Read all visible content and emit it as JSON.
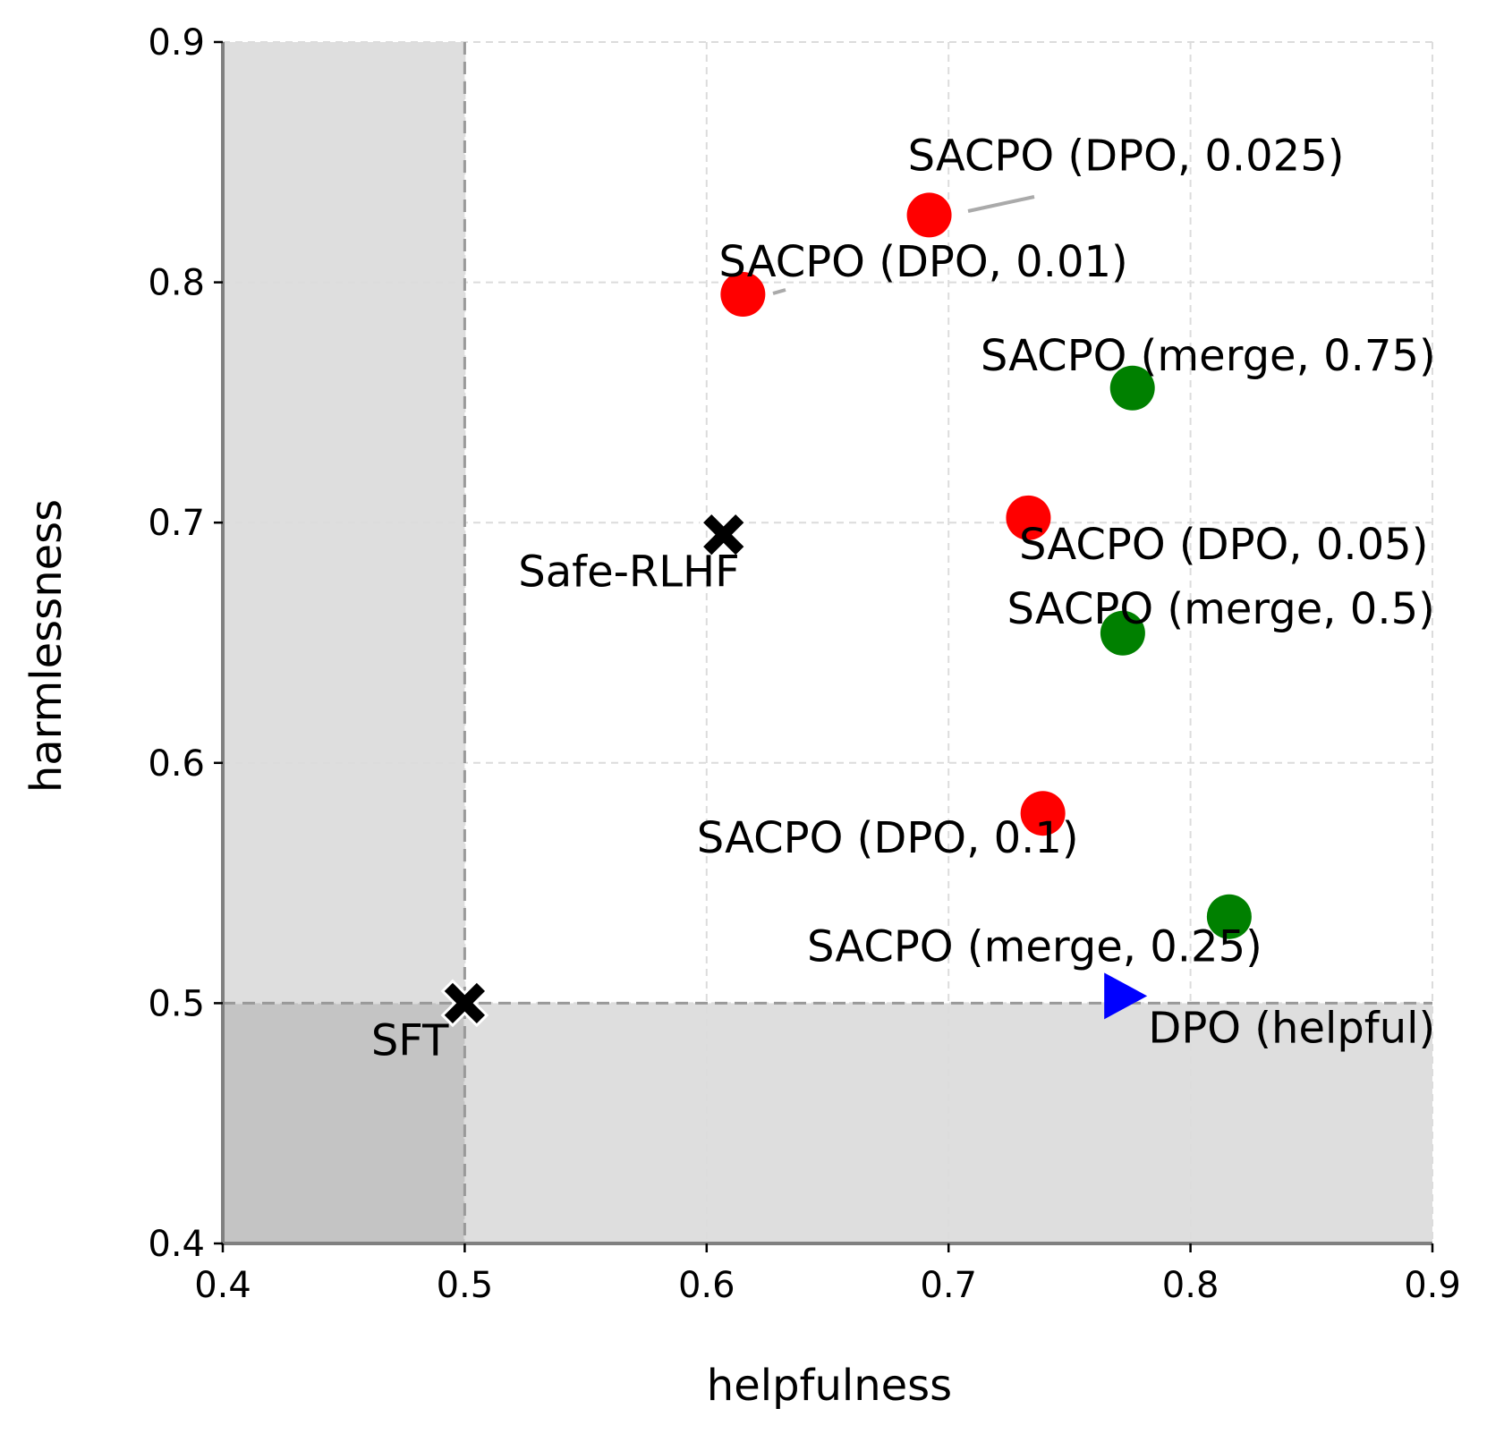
{
  "chart_data": {
    "type": "scatter",
    "xlabel": "helpfulness",
    "ylabel": "harmlessness",
    "xlim": [
      0.4,
      0.9
    ],
    "ylim": [
      0.4,
      0.9
    ],
    "x_ticks": [
      "0.4",
      "0.5",
      "0.6",
      "0.7",
      "0.8",
      "0.9"
    ],
    "y_ticks": [
      "0.4",
      "0.5",
      "0.6",
      "0.7",
      "0.8",
      "0.9"
    ],
    "grid": true,
    "reference": {
      "x": 0.5,
      "y": 0.5
    },
    "shaded_regions": {
      "color": "#dedede",
      "overlap_color": "#c4c4c4"
    },
    "points": [
      {
        "label": "SFT",
        "x": 0.5,
        "y": 0.5,
        "marker": "x",
        "color": "#000000"
      },
      {
        "label": "Safe-RLHF",
        "x": 0.607,
        "y": 0.695,
        "marker": "x",
        "color": "#000000"
      },
      {
        "label": "DPO (helpful)",
        "x": 0.771,
        "y": 0.503,
        "marker": "triangle-right",
        "color": "#0000ff"
      },
      {
        "label": "SACPO (DPO, 0.025)",
        "x": 0.692,
        "y": 0.828,
        "marker": "circle",
        "color": "#ff0000"
      },
      {
        "label": "SACPO (DPO, 0.01)",
        "x": 0.615,
        "y": 0.795,
        "marker": "circle",
        "color": "#ff0000"
      },
      {
        "label": "SACPO (DPO, 0.05)",
        "x": 0.733,
        "y": 0.702,
        "marker": "circle",
        "color": "#ff0000"
      },
      {
        "label": "SACPO (DPO, 0.1)",
        "x": 0.739,
        "y": 0.579,
        "marker": "circle",
        "color": "#ff0000"
      },
      {
        "label": "SACPO (merge, 0.75)",
        "x": 0.776,
        "y": 0.756,
        "marker": "circle",
        "color": "#008000"
      },
      {
        "label": "SACPO (merge, 0.5)",
        "x": 0.772,
        "y": 0.654,
        "marker": "circle",
        "color": "#008000"
      },
      {
        "label": "SACPO (merge, 0.25)",
        "x": 0.816,
        "y": 0.536,
        "marker": "circle",
        "color": "#008000"
      }
    ]
  }
}
